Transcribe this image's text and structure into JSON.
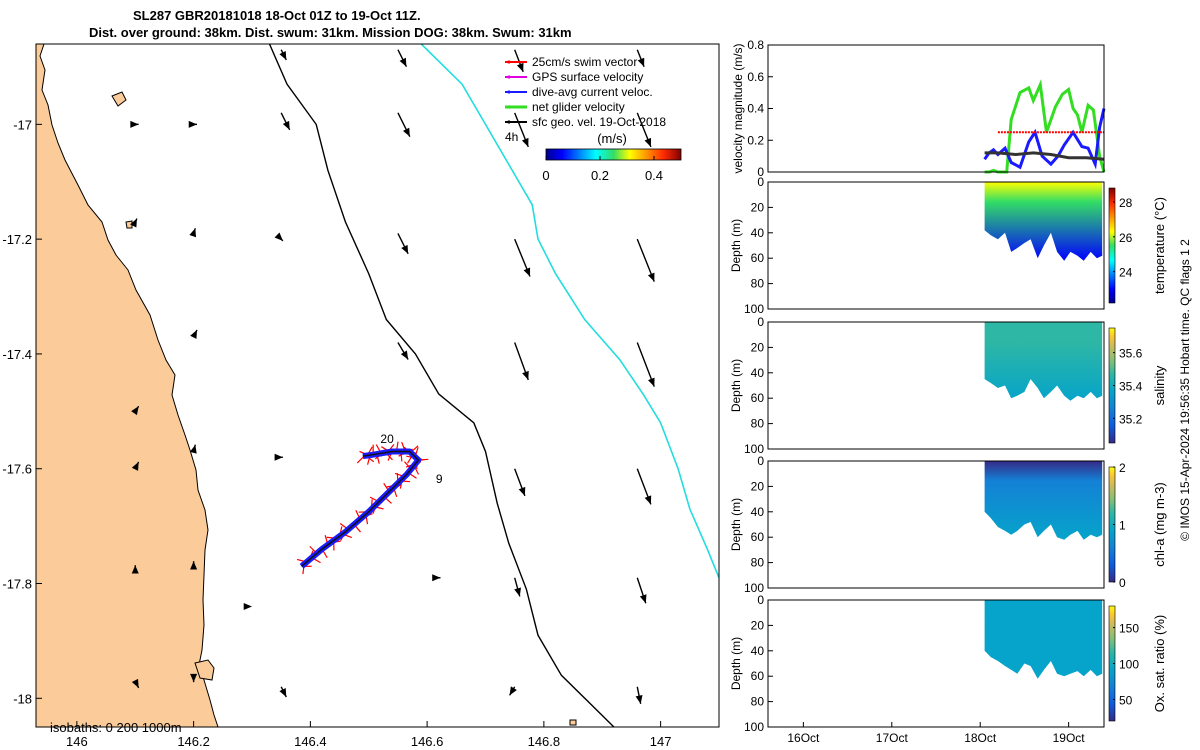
{
  "title": {
    "line1": "SL287 GBR20181018 18-Oct 01Z to 19-Oct 11Z.",
    "line2": "Dist. over ground: 38km. Dist. swum: 31km. Mission DOG: 38km. Swum: 31km"
  },
  "credit": "© IMOS 15-Apr-2024 19:56:35 Hobart time. QC flags 1  2",
  "colors": {
    "land": "#fbcb9a",
    "glider_track": "#1a1aff",
    "swim": "#ff0000",
    "gps": "#e000e0",
    "net_velocity": "#33dd22",
    "geostrophic": "#000000",
    "isobath_200": "#000000",
    "isobath_1000": "#22dddd"
  },
  "chart_data": [
    {
      "type": "map",
      "name": "glider track map",
      "xlabel": "longitude",
      "ylabel": "latitude",
      "xlim": [
        145.93,
        147.1
      ],
      "ylim": [
        -18.05,
        -16.86
      ],
      "xticks": [
        146,
        146.2,
        146.4,
        146.6,
        146.8,
        147
      ],
      "xtick_labels": [
        "146",
        "146.2",
        "146.4",
        "146.6",
        "146.8",
        "147"
      ],
      "yticks": [
        -17,
        -17.2,
        -17.4,
        -17.6,
        -17.8,
        -18
      ],
      "ytick_labels": [
        "-17",
        "-17.2",
        "-17.4",
        "-17.6",
        "-17.8",
        "-18"
      ],
      "legend": [
        {
          "label": "25cm/s swim vector",
          "color": "#ff0000"
        },
        {
          "label": "GPS surface velocity",
          "color": "#e000e0"
        },
        {
          "label": "dive-avg current veloc.",
          "color": "#1a1aff"
        },
        {
          "label": "net glider velocity",
          "color": "#33dd22"
        },
        {
          "label": "sfc geo. vel. 19-Oct-2018",
          "color": "#000000"
        }
      ],
      "legend_scale_label": "4h",
      "colorbar": {
        "label": "(m/s)",
        "ticks": [
          0,
          0.2,
          0.4
        ],
        "tick_labels": [
          "0",
          "0.2",
          "0.4"
        ],
        "range": [
          0,
          0.5
        ]
      },
      "isobaths_label": "isobaths: 0   200  1000m",
      "track_labels": [
        {
          "text": "20",
          "lon": 146.52,
          "lat": -17.555
        },
        {
          "text": "9",
          "lon": 146.615,
          "lat": -17.625
        }
      ],
      "track": [
        [
          146.385,
          -17.77
        ],
        [
          146.42,
          -17.74
        ],
        [
          146.46,
          -17.71
        ],
        [
          146.5,
          -17.675
        ],
        [
          146.535,
          -17.64
        ],
        [
          146.565,
          -17.61
        ],
        [
          146.585,
          -17.585
        ],
        [
          146.57,
          -17.57
        ],
        [
          146.54,
          -17.57
        ],
        [
          146.51,
          -17.575
        ],
        [
          146.49,
          -17.578
        ]
      ],
      "isobath_200": [
        [
          146.33,
          -16.86
        ],
        [
          146.36,
          -16.93
        ],
        [
          146.41,
          -17.0
        ],
        [
          146.43,
          -17.08
        ],
        [
          146.46,
          -17.17
        ],
        [
          146.5,
          -17.26
        ],
        [
          146.53,
          -17.34
        ],
        [
          146.58,
          -17.4
        ],
        [
          146.62,
          -17.47
        ],
        [
          146.68,
          -17.52
        ],
        [
          146.7,
          -17.57
        ],
        [
          146.72,
          -17.66
        ],
        [
          146.74,
          -17.73
        ],
        [
          146.77,
          -17.81
        ],
        [
          146.79,
          -17.89
        ],
        [
          146.83,
          -17.96
        ],
        [
          146.88,
          -18.01
        ],
        [
          146.92,
          -18.05
        ]
      ],
      "isobath_1000": [
        [
          146.59,
          -16.86
        ],
        [
          146.66,
          -16.93
        ],
        [
          146.7,
          -17.0
        ],
        [
          146.74,
          -17.07
        ],
        [
          146.78,
          -17.14
        ],
        [
          146.79,
          -17.2
        ],
        [
          146.82,
          -17.26
        ],
        [
          146.87,
          -17.34
        ],
        [
          146.93,
          -17.41
        ],
        [
          146.97,
          -17.47
        ],
        [
          147.0,
          -17.52
        ],
        [
          147.03,
          -17.6
        ],
        [
          147.05,
          -17.67
        ],
        [
          147.08,
          -17.74
        ],
        [
          147.1,
          -17.79
        ]
      ],
      "geo_vectors": [
        {
          "lon": 146.1,
          "lat": -17.0,
          "u": 0.02,
          "v": 0.0
        },
        {
          "lon": 146.1,
          "lat": -17.17,
          "u": 0.01,
          "v": 0.02
        },
        {
          "lon": 146.1,
          "lat": -17.5,
          "u": 0.02,
          "v": 0.03
        },
        {
          "lon": 146.1,
          "lat": -17.6,
          "u": 0.02,
          "v": 0.04
        },
        {
          "lon": 146.1,
          "lat": -17.78,
          "u": 0.0,
          "v": 0.04
        },
        {
          "lon": 146.1,
          "lat": -17.97,
          "u": 0.02,
          "v": -0.04
        },
        {
          "lon": 146.2,
          "lat": -17.0,
          "u": 0.02,
          "v": 0.0
        },
        {
          "lon": 146.2,
          "lat": -17.19,
          "u": 0.01,
          "v": 0.03
        },
        {
          "lon": 146.2,
          "lat": -17.37,
          "u": 0.02,
          "v": 0.04
        },
        {
          "lon": 146.2,
          "lat": -17.57,
          "u": 0.01,
          "v": 0.04
        },
        {
          "lon": 146.2,
          "lat": -17.77,
          "u": 0.0,
          "v": 0.03
        },
        {
          "lon": 146.2,
          "lat": -17.96,
          "u": 0.0,
          "v": -0.04
        },
        {
          "lon": 146.3,
          "lat": -17.84,
          "u": 0.0,
          "v": 0.0
        },
        {
          "lon": 146.35,
          "lat": -16.87,
          "u": 0.03,
          "v": -0.06
        },
        {
          "lon": 146.35,
          "lat": -16.98,
          "u": 0.05,
          "v": -0.1
        },
        {
          "lon": 146.35,
          "lat": -17.2,
          "u": 0.01,
          "v": -0.01
        },
        {
          "lon": 146.35,
          "lat": -17.58,
          "u": 0.01,
          "v": 0.0
        },
        {
          "lon": 146.35,
          "lat": -17.98,
          "u": 0.03,
          "v": -0.06
        },
        {
          "lon": 146.55,
          "lat": -16.87,
          "u": 0.05,
          "v": -0.1
        },
        {
          "lon": 146.55,
          "lat": -16.98,
          "u": 0.07,
          "v": -0.14
        },
        {
          "lon": 146.55,
          "lat": -17.19,
          "u": 0.06,
          "v": -0.12
        },
        {
          "lon": 146.55,
          "lat": -17.38,
          "u": 0.06,
          "v": -0.1
        },
        {
          "lon": 146.62,
          "lat": -17.79,
          "u": 0.01,
          "v": 0.0
        },
        {
          "lon": 146.75,
          "lat": -16.87,
          "u": 0.05,
          "v": -0.13
        },
        {
          "lon": 146.75,
          "lat": -16.98,
          "u": 0.08,
          "v": -0.2
        },
        {
          "lon": 146.75,
          "lat": -17.2,
          "u": 0.09,
          "v": -0.22
        },
        {
          "lon": 146.75,
          "lat": -17.38,
          "u": 0.08,
          "v": -0.22
        },
        {
          "lon": 146.75,
          "lat": -17.6,
          "u": 0.06,
          "v": -0.16
        },
        {
          "lon": 146.75,
          "lat": -17.79,
          "u": 0.03,
          "v": -0.11
        },
        {
          "lon": 146.75,
          "lat": -17.98,
          "u": -0.03,
          "v": -0.05
        },
        {
          "lon": 146.96,
          "lat": -16.87,
          "u": 0.04,
          "v": -0.1
        },
        {
          "lon": 146.96,
          "lat": -16.98,
          "u": 0.08,
          "v": -0.2
        },
        {
          "lon": 146.96,
          "lat": -17.2,
          "u": 0.1,
          "v": -0.25
        },
        {
          "lon": 146.96,
          "lat": -17.38,
          "u": 0.1,
          "v": -0.26
        },
        {
          "lon": 146.96,
          "lat": -17.6,
          "u": 0.08,
          "v": -0.21
        },
        {
          "lon": 146.96,
          "lat": -17.79,
          "u": 0.05,
          "v": -0.15
        },
        {
          "lon": 146.96,
          "lat": -17.98,
          "u": 0.02,
          "v": -0.1
        }
      ]
    },
    {
      "type": "line",
      "name": "velocity magnitude",
      "ylabel": "velocity magnitude (m/s)",
      "ylim": [
        0,
        0.8
      ],
      "yticks": [
        0,
        0.2,
        0.4,
        0.6,
        0.8
      ],
      "ytick_labels": [
        "0",
        "0.2",
        "0.4",
        "0.6",
        "0.8"
      ],
      "xlim": [
        15.6,
        19.4
      ],
      "series": [
        {
          "name": "net glider velocity",
          "color": "#33dd22",
          "x": [
            18.05,
            18.1,
            18.15,
            18.2,
            18.3,
            18.35,
            18.45,
            18.55,
            18.6,
            18.68,
            18.75,
            18.85,
            18.93,
            19.0,
            19.05,
            19.1,
            19.15,
            19.22,
            19.28,
            19.35,
            19.4
          ],
          "y": [
            0.0,
            0.0,
            0.01,
            0.0,
            0.0,
            0.33,
            0.5,
            0.53,
            0.45,
            0.55,
            0.25,
            0.41,
            0.49,
            0.52,
            0.4,
            0.36,
            0.25,
            0.42,
            0.39,
            0.1,
            0.0
          ]
        },
        {
          "name": "dive-avg current veloc.",
          "color": "#1a1aff",
          "x": [
            18.05,
            18.1,
            18.15,
            18.2,
            18.28,
            18.35,
            18.45,
            18.55,
            18.62,
            18.7,
            18.8,
            18.88,
            18.95,
            19.05,
            19.15,
            19.22,
            19.3,
            19.35,
            19.4
          ],
          "y": [
            0.08,
            0.12,
            0.14,
            0.11,
            0.15,
            0.06,
            0.03,
            0.19,
            0.25,
            0.1,
            0.05,
            0.1,
            0.17,
            0.25,
            0.16,
            0.15,
            0.05,
            0.28,
            0.4
          ]
        },
        {
          "name": "25cm/s swim vector",
          "color": "#ff0000",
          "x": [
            18.2,
            19.4
          ],
          "y": [
            0.25,
            0.25
          ]
        },
        {
          "name": "sfc geo. vel. 19-Oct-2018",
          "color": "#333333",
          "x": [
            18.05,
            18.2,
            18.4,
            18.6,
            18.8,
            19.0,
            19.2,
            19.4
          ],
          "y": [
            0.12,
            0.12,
            0.11,
            0.12,
            0.11,
            0.09,
            0.09,
            0.08
          ]
        }
      ]
    },
    {
      "type": "heatmap",
      "name": "temperature section",
      "ylabel": "Depth (m)",
      "colorbar_label": "temperature (°C)",
      "ylim": [
        100,
        0
      ],
      "yticks": [
        0,
        20,
        40,
        60,
        80,
        100
      ],
      "ytick_labels": [
        "0",
        "20",
        "40",
        "60",
        "80",
        "100"
      ],
      "clim": [
        22.2,
        28.8
      ],
      "cticks": [
        24,
        26,
        28
      ],
      "ctick_labels": [
        "24",
        "26",
        "28"
      ],
      "x": [
        18.05,
        18.12,
        18.2,
        18.28,
        18.35,
        18.42,
        18.5,
        18.57,
        18.65,
        18.72,
        18.8,
        18.87,
        18.95,
        19.02,
        19.1,
        19.17,
        19.25,
        19.32,
        19.38
      ],
      "max_depth": [
        38,
        42,
        45,
        40,
        55,
        52,
        48,
        45,
        60,
        50,
        40,
        55,
        62,
        55,
        58,
        62,
        55,
        60,
        58
      ],
      "surface_value": 27.9,
      "bottom_value": 24.6
    },
    {
      "type": "heatmap",
      "name": "salinity section",
      "ylabel": "Depth (m)",
      "colorbar_label": "salinity",
      "ylim": [
        100,
        0
      ],
      "yticks": [
        0,
        20,
        40,
        60,
        80,
        100
      ],
      "ytick_labels": [
        "0",
        "20",
        "40",
        "60",
        "80",
        "100"
      ],
      "clim": [
        35.05,
        35.75
      ],
      "cticks": [
        35.2,
        35.4,
        35.6
      ],
      "ctick_labels": [
        "35.2",
        "35.4",
        "35.6"
      ],
      "x": [
        18.05,
        18.12,
        18.2,
        18.28,
        18.35,
        18.42,
        18.5,
        18.57,
        18.65,
        18.72,
        18.8,
        18.87,
        18.95,
        19.02,
        19.1,
        19.17,
        19.25,
        19.32,
        19.38
      ],
      "max_depth": [
        45,
        48,
        52,
        50,
        60,
        58,
        55,
        45,
        52,
        60,
        55,
        50,
        58,
        62,
        58,
        60,
        55,
        60,
        58
      ],
      "surface_value": 35.55,
      "bottom_value": 35.45
    },
    {
      "type": "heatmap",
      "name": "chlorophyll section",
      "ylabel": "Depth (m)",
      "colorbar_label": "chl-a (mg m-3)",
      "ylim": [
        100,
        0
      ],
      "yticks": [
        0,
        20,
        40,
        60,
        80,
        100
      ],
      "ytick_labels": [
        "0",
        "20",
        "40",
        "60",
        "80",
        "100"
      ],
      "clim": [
        0,
        2
      ],
      "cticks": [
        0,
        1,
        2
      ],
      "ctick_labels": [
        "0",
        "1",
        "2"
      ],
      "x": [
        18.05,
        18.12,
        18.2,
        18.28,
        18.35,
        18.42,
        18.5,
        18.57,
        18.65,
        18.72,
        18.8,
        18.87,
        18.95,
        19.02,
        19.1,
        19.17,
        19.25,
        19.32,
        19.38
      ],
      "max_depth": [
        40,
        45,
        52,
        55,
        58,
        55,
        50,
        48,
        60,
        55,
        50,
        60,
        62,
        58,
        55,
        62,
        58,
        60,
        58
      ],
      "surface_value": 0.15,
      "bottom_value": 1.1
    },
    {
      "type": "heatmap",
      "name": "oxygen section",
      "ylabel": "Depth (m)",
      "colorbar_label": "Ox. sat. ratio (%)",
      "ylim": [
        100,
        0
      ],
      "yticks": [
        0,
        20,
        40,
        60,
        80,
        100
      ],
      "ytick_labels": [
        "0",
        "20",
        "40",
        "60",
        "80",
        "100"
      ],
      "clim": [
        20,
        180
      ],
      "cticks": [
        50,
        100,
        150
      ],
      "ctick_labels": [
        "50",
        "100",
        "150"
      ],
      "xticks": [
        16,
        17,
        18,
        19
      ],
      "xtick_labels": [
        "16Oct",
        "17Oct",
        "18Oct",
        "19Oct"
      ],
      "x": [
        18.05,
        18.12,
        18.2,
        18.28,
        18.35,
        18.42,
        18.5,
        18.57,
        18.65,
        18.72,
        18.8,
        18.87,
        18.95,
        19.02,
        19.1,
        19.17,
        19.25,
        19.32,
        19.38
      ],
      "max_depth": [
        40,
        45,
        48,
        52,
        55,
        58,
        50,
        52,
        62,
        55,
        48,
        58,
        60,
        58,
        56,
        60,
        55,
        60,
        58
      ],
      "surface_value": 104,
      "bottom_value": 100
    }
  ]
}
